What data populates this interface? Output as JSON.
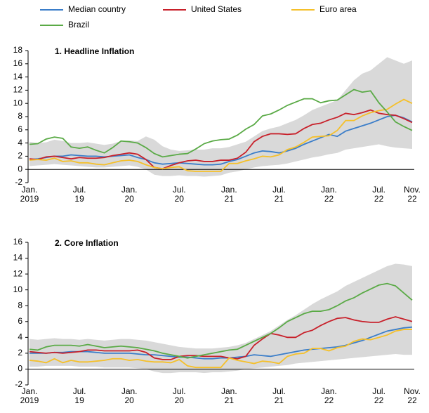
{
  "chart_data": [
    {
      "type": "line",
      "title": "1. Headline Inflation",
      "categories": [
        "Jan.\n2019",
        null,
        null,
        null,
        null,
        null,
        "Jul.\n19",
        null,
        null,
        null,
        null,
        null,
        "Jan.\n20",
        null,
        null,
        null,
        null,
        null,
        "Jul.\n20",
        null,
        null,
        null,
        null,
        null,
        "Jan.\n21",
        null,
        null,
        null,
        null,
        null,
        "Jul.\n21",
        null,
        null,
        null,
        null,
        null,
        "Jan.\n22",
        null,
        null,
        null,
        null,
        null,
        "Jul.\n22",
        null,
        null,
        null,
        "Nov.\n22"
      ],
      "ylim": [
        -2,
        18
      ],
      "yticks": [
        -2,
        0,
        2,
        4,
        6,
        8,
        10,
        12,
        14,
        16,
        18
      ],
      "band": {
        "color": "#d9d9d9",
        "upper": [
          4.2,
          4.0,
          4.1,
          4.5,
          4.3,
          4.0,
          4.0,
          4.1,
          3.9,
          3.7,
          3.9,
          4.3,
          4.4,
          4.3,
          5.0,
          4.5,
          3.5,
          3.0,
          2.8,
          2.9,
          3.0,
          3.0,
          3.2,
          3.2,
          3.4,
          3.8,
          4.2,
          5.0,
          5.8,
          6.2,
          6.5,
          7.0,
          7.5,
          8.2,
          9.0,
          9.5,
          10.0,
          10.5,
          12.0,
          13.5,
          14.5,
          15.0,
          16.0,
          17.0,
          16.5,
          16.0,
          16.5
        ],
        "lower": [
          0.5,
          0.6,
          0.7,
          0.8,
          0.7,
          0.6,
          0.5,
          0.4,
          0.3,
          0.3,
          0.4,
          0.5,
          0.6,
          0.4,
          0.0,
          -0.8,
          -1.0,
          -1.0,
          -0.9,
          -1.0,
          -1.0,
          -1.1,
          -1.0,
          -0.9,
          -0.5,
          -0.3,
          0.0,
          0.3,
          0.5,
          0.6,
          0.7,
          0.9,
          1.2,
          1.5,
          1.8,
          2.0,
          2.3,
          2.5,
          3.0,
          3.2,
          3.4,
          3.6,
          3.8,
          3.5,
          3.3,
          3.2,
          3.1
        ]
      },
      "series": [
        {
          "name": "Median country",
          "color": "#3a7dc9",
          "values": [
            1.5,
            1.6,
            1.8,
            2.0,
            2.0,
            2.2,
            2.1,
            2.0,
            2.0,
            1.9,
            2.0,
            2.1,
            2.2,
            1.8,
            1.5,
            1.0,
            0.8,
            0.9,
            1.0,
            0.9,
            0.8,
            0.7,
            0.7,
            0.8,
            1.2,
            1.5,
            2.0,
            2.5,
            2.8,
            2.7,
            2.5,
            2.8,
            3.2,
            3.8,
            4.3,
            4.8,
            5.3,
            5.0,
            5.8,
            6.2,
            6.6,
            7.0,
            7.5,
            8.0,
            8.2,
            7.8,
            7.2
          ]
        },
        {
          "name": "United States",
          "color": "#c8202a",
          "values": [
            1.6,
            1.5,
            1.9,
            2.0,
            1.8,
            1.6,
            1.8,
            1.7,
            1.7,
            1.8,
            2.1,
            2.3,
            2.5,
            2.3,
            1.5,
            0.3,
            0.1,
            0.6,
            1.0,
            1.3,
            1.4,
            1.2,
            1.2,
            1.4,
            1.4,
            1.7,
            2.6,
            4.2,
            5.0,
            5.4,
            5.4,
            5.3,
            5.4,
            6.2,
            6.8,
            7.0,
            7.5,
            7.9,
            8.5,
            8.3,
            8.6,
            9.0,
            8.5,
            8.3,
            8.2,
            7.7,
            7.1
          ]
        },
        {
          "name": "Euro area",
          "color": "#f5c02a",
          "values": [
            1.4,
            1.5,
            1.4,
            1.7,
            1.2,
            1.3,
            1.0,
            1.0,
            0.8,
            0.7,
            1.0,
            1.3,
            1.4,
            1.2,
            0.7,
            0.3,
            0.1,
            0.3,
            0.4,
            -0.2,
            -0.3,
            -0.3,
            -0.3,
            -0.3,
            0.9,
            0.9,
            1.3,
            1.6,
            2.0,
            1.9,
            2.2,
            3.0,
            3.4,
            4.1,
            4.9,
            5.0,
            5.1,
            5.9,
            7.4,
            7.4,
            8.1,
            8.6,
            8.9,
            9.1,
            9.9,
            10.6,
            10.0
          ]
        },
        {
          "name": "Brazil",
          "color": "#5aaa46",
          "values": [
            3.8,
            3.9,
            4.6,
            4.9,
            4.7,
            3.4,
            3.2,
            3.4,
            2.9,
            2.5,
            3.3,
            4.3,
            4.2,
            4.0,
            3.3,
            2.4,
            1.9,
            2.1,
            2.3,
            2.4,
            3.1,
            3.9,
            4.3,
            4.5,
            4.6,
            5.2,
            6.1,
            6.8,
            8.1,
            8.4,
            9.0,
            9.7,
            10.2,
            10.7,
            10.7,
            10.1,
            10.4,
            10.5,
            11.3,
            12.1,
            11.7,
            11.9,
            10.1,
            8.7,
            7.2,
            6.5,
            5.9
          ]
        }
      ]
    },
    {
      "type": "line",
      "title": "2. Core Inflation",
      "categories": [
        "Jan.\n2019",
        null,
        null,
        null,
        null,
        null,
        "Jul.\n19",
        null,
        null,
        null,
        null,
        null,
        "Jan.\n20",
        null,
        null,
        null,
        null,
        null,
        "Jul.\n20",
        null,
        null,
        null,
        null,
        null,
        "Jan.\n21",
        null,
        null,
        null,
        null,
        null,
        "Jul.\n21",
        null,
        null,
        null,
        null,
        null,
        "Jan.\n22",
        null,
        null,
        null,
        null,
        null,
        "Jul.\n22",
        null,
        null,
        null,
        "Nov.\n22"
      ],
      "ylim": [
        -2,
        16
      ],
      "yticks": [
        -2,
        0,
        2,
        4,
        6,
        8,
        10,
        12,
        14,
        16
      ],
      "band": {
        "color": "#d9d9d9",
        "upper": [
          3.8,
          3.7,
          3.8,
          3.9,
          3.8,
          3.8,
          3.7,
          3.8,
          3.7,
          3.6,
          3.7,
          3.8,
          3.8,
          3.7,
          3.6,
          3.4,
          3.2,
          3.0,
          2.8,
          2.7,
          2.6,
          2.6,
          2.6,
          2.7,
          2.8,
          3.0,
          3.3,
          3.8,
          4.3,
          4.8,
          5.5,
          6.2,
          6.8,
          7.5,
          8.2,
          8.8,
          9.3,
          9.8,
          10.5,
          11.0,
          11.5,
          12.0,
          12.5,
          13.0,
          13.3,
          13.2,
          13.0
        ],
        "lower": [
          0.3,
          0.3,
          0.4,
          0.4,
          0.4,
          0.4,
          0.3,
          0.3,
          0.3,
          0.2,
          0.2,
          0.2,
          0.2,
          0.1,
          0.0,
          -0.3,
          -0.5,
          -0.5,
          -0.4,
          -0.4,
          -0.4,
          -0.5,
          -0.4,
          -0.4,
          -0.3,
          -0.2,
          0.0,
          0.1,
          0.2,
          0.3,
          0.4,
          0.5,
          0.7,
          0.8,
          0.9,
          1.0,
          1.1,
          1.2,
          1.3,
          1.4,
          1.5,
          1.6,
          1.7,
          1.8,
          1.9,
          1.8,
          1.8
        ]
      },
      "series": [
        {
          "values": [
            2.0,
            2.0,
            2.0,
            2.1,
            2.1,
            2.2,
            2.2,
            2.2,
            2.1,
            2.0,
            2.0,
            2.0,
            2.0,
            1.9,
            1.8,
            1.8,
            1.7,
            1.6,
            1.5,
            1.5,
            1.4,
            1.3,
            1.3,
            1.4,
            1.4,
            1.5,
            1.6,
            1.8,
            1.7,
            1.6,
            1.8,
            2.0,
            2.2,
            2.4,
            2.5,
            2.6,
            2.7,
            2.8,
            3.0,
            3.3,
            3.6,
            4.0,
            4.4,
            4.8,
            5.0,
            5.2,
            5.3
          ]
        },
        {
          "values": [
            2.2,
            2.1,
            2.0,
            2.1,
            2.0,
            2.1,
            2.2,
            2.4,
            2.4,
            2.3,
            2.3,
            2.3,
            2.3,
            2.4,
            2.1,
            1.4,
            1.2,
            1.2,
            1.6,
            1.7,
            1.7,
            1.6,
            1.6,
            1.6,
            1.4,
            1.3,
            1.6,
            3.0,
            3.8,
            4.5,
            4.3,
            4.0,
            4.0,
            4.6,
            4.9,
            5.5,
            6.0,
            6.4,
            6.5,
            6.2,
            6.0,
            5.9,
            5.9,
            6.3,
            6.6,
            6.3,
            6.0
          ]
        },
        {
          "values": [
            1.1,
            1.0,
            0.8,
            1.3,
            0.8,
            1.1,
            0.9,
            0.9,
            1.0,
            1.1,
            1.3,
            1.3,
            1.1,
            1.2,
            1.0,
            0.9,
            0.9,
            0.8,
            1.2,
            0.4,
            0.2,
            0.2,
            0.2,
            0.2,
            1.4,
            1.1,
            0.9,
            0.7,
            1.0,
            0.9,
            0.7,
            1.6,
            1.9,
            2.0,
            2.6,
            2.6,
            2.3,
            2.7,
            2.9,
            3.5,
            3.8,
            3.7,
            4.0,
            4.3,
            4.8,
            5.0,
            5.0
          ]
        },
        {
          "values": [
            2.5,
            2.4,
            2.8,
            3.0,
            3.0,
            3.0,
            2.9,
            3.1,
            2.9,
            2.7,
            2.8,
            2.9,
            2.8,
            2.7,
            2.5,
            2.3,
            2.0,
            1.8,
            1.6,
            1.4,
            1.6,
            1.8,
            2.0,
            2.2,
            2.4,
            2.5,
            3.0,
            3.5,
            4.0,
            4.5,
            5.2,
            6.0,
            6.5,
            7.0,
            7.3,
            7.3,
            7.5,
            8.0,
            8.6,
            9.0,
            9.6,
            10.1,
            10.6,
            10.8,
            10.5,
            9.6,
            8.7
          ]
        }
      ]
    }
  ]
}
